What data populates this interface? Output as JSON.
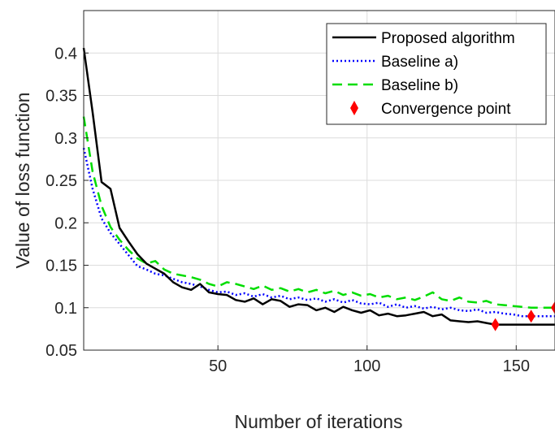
{
  "chart_data": {
    "type": "line",
    "xlabel": "Number of iterations",
    "ylabel": "Value of loss function",
    "xlim": [
      5,
      163
    ],
    "ylim": [
      0.05,
      0.45
    ],
    "xticks": [
      50,
      100,
      150
    ],
    "yticks": [
      0.05,
      0.1,
      0.15,
      0.2,
      0.25,
      0.3,
      0.35,
      0.4
    ],
    "xtick_labels": [
      "50",
      "100",
      "150"
    ],
    "ytick_labels": [
      "0.05",
      "0.1",
      "0.15",
      "0.2",
      "0.25",
      "0.3",
      "0.35",
      "0.4"
    ],
    "grid": true,
    "legend_position": "top-right",
    "series": [
      {
        "name": "Proposed algorithm",
        "color": "#000000",
        "style": "solid",
        "x": [
          5,
          8,
          11,
          14,
          17,
          20,
          23,
          26,
          29,
          32,
          35,
          38,
          41,
          44,
          47,
          50,
          53,
          56,
          59,
          62,
          65,
          68,
          71,
          74,
          77,
          80,
          83,
          86,
          89,
          92,
          95,
          98,
          101,
          104,
          107,
          110,
          113,
          116,
          119,
          122,
          125,
          128,
          131,
          134,
          137,
          140,
          143,
          146,
          149,
          152,
          155,
          158,
          163
        ],
        "values": [
          0.406,
          0.33,
          0.248,
          0.24,
          0.194,
          0.178,
          0.163,
          0.152,
          0.146,
          0.14,
          0.13,
          0.124,
          0.121,
          0.128,
          0.118,
          0.116,
          0.115,
          0.109,
          0.107,
          0.111,
          0.104,
          0.11,
          0.108,
          0.101,
          0.104,
          0.103,
          0.097,
          0.1,
          0.095,
          0.101,
          0.097,
          0.094,
          0.097,
          0.091,
          0.093,
          0.09,
          0.091,
          0.093,
          0.095,
          0.09,
          0.092,
          0.085,
          0.084,
          0.083,
          0.084,
          0.082,
          0.08,
          0.08,
          0.08,
          0.08,
          0.08,
          0.08,
          0.08
        ]
      },
      {
        "name": "Baseline a)",
        "color": "#0000ff",
        "style": "dotted",
        "x": [
          5,
          8,
          11,
          14,
          17,
          20,
          23,
          26,
          29,
          32,
          35,
          38,
          41,
          44,
          47,
          50,
          53,
          56,
          59,
          62,
          65,
          68,
          71,
          74,
          77,
          80,
          83,
          86,
          89,
          92,
          95,
          98,
          101,
          104,
          107,
          110,
          113,
          116,
          119,
          122,
          125,
          128,
          131,
          134,
          137,
          140,
          143,
          146,
          149,
          152,
          155,
          158,
          163
        ],
        "values": [
          0.288,
          0.24,
          0.205,
          0.188,
          0.175,
          0.162,
          0.149,
          0.145,
          0.14,
          0.138,
          0.134,
          0.13,
          0.128,
          0.125,
          0.121,
          0.118,
          0.119,
          0.115,
          0.117,
          0.113,
          0.116,
          0.112,
          0.114,
          0.11,
          0.112,
          0.109,
          0.111,
          0.107,
          0.11,
          0.106,
          0.109,
          0.105,
          0.104,
          0.106,
          0.101,
          0.104,
          0.1,
          0.102,
          0.099,
          0.101,
          0.098,
          0.1,
          0.097,
          0.096,
          0.098,
          0.094,
          0.095,
          0.093,
          0.092,
          0.09,
          0.09,
          0.09,
          0.09
        ]
      },
      {
        "name": "Baseline b)",
        "color": "#00dd00",
        "style": "dashed",
        "x": [
          5,
          8,
          11,
          14,
          17,
          20,
          23,
          26,
          29,
          32,
          35,
          38,
          41,
          44,
          47,
          50,
          53,
          56,
          59,
          62,
          65,
          68,
          71,
          74,
          77,
          80,
          83,
          86,
          89,
          92,
          95,
          98,
          101,
          104,
          107,
          110,
          113,
          116,
          119,
          122,
          125,
          128,
          131,
          134,
          137,
          140,
          143,
          146,
          149,
          152,
          155,
          158,
          163
        ],
        "values": [
          0.325,
          0.26,
          0.22,
          0.195,
          0.18,
          0.168,
          0.158,
          0.152,
          0.155,
          0.145,
          0.14,
          0.138,
          0.136,
          0.133,
          0.128,
          0.125,
          0.13,
          0.128,
          0.125,
          0.122,
          0.126,
          0.121,
          0.123,
          0.119,
          0.122,
          0.118,
          0.121,
          0.117,
          0.12,
          0.115,
          0.118,
          0.114,
          0.116,
          0.112,
          0.114,
          0.11,
          0.112,
          0.109,
          0.113,
          0.118,
          0.11,
          0.108,
          0.112,
          0.107,
          0.106,
          0.108,
          0.104,
          0.103,
          0.102,
          0.101,
          0.1,
          0.1,
          0.1
        ]
      }
    ],
    "convergence_points": {
      "name": "Convergence point",
      "color": "#ff0000",
      "marker": "diamond",
      "points": [
        {
          "x": 143,
          "y": 0.08
        },
        {
          "x": 155,
          "y": 0.09
        },
        {
          "x": 163,
          "y": 0.1
        }
      ]
    }
  }
}
